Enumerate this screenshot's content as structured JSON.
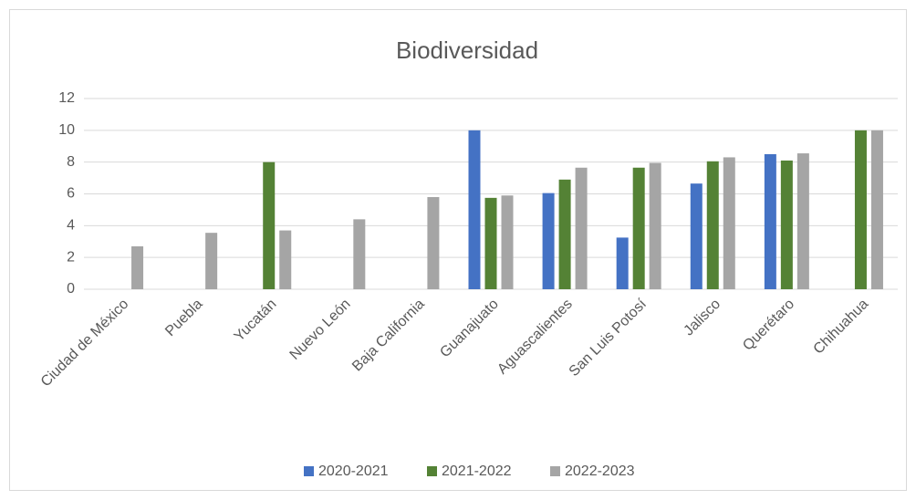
{
  "chart_data": {
    "type": "bar",
    "title": "Biodiversidad",
    "categories": [
      "Ciudad de México",
      "Puebla",
      "Yucatán",
      "Nuevo León",
      "Baja California",
      "Guanajuato",
      "Aguascalientes",
      "San Luis Potosí",
      "Jalisco",
      "Querétaro",
      "Chihuahua"
    ],
    "series": [
      {
        "name": "2020-2021",
        "color": "#4472c4",
        "values": [
          null,
          null,
          null,
          null,
          null,
          10,
          6.05,
          3.25,
          6.65,
          8.5,
          null
        ]
      },
      {
        "name": "2021-2022",
        "color": "#548235",
        "values": [
          null,
          null,
          8,
          null,
          null,
          5.75,
          6.9,
          7.65,
          8.05,
          8.1,
          10
        ]
      },
      {
        "name": "2022-2023",
        "color": "#a5a5a5",
        "values": [
          2.7,
          3.55,
          3.7,
          4.4,
          5.8,
          5.9,
          7.65,
          7.95,
          8.3,
          8.55,
          10
        ]
      }
    ],
    "ylim": [
      0,
      12
    ],
    "yticks": [
      0,
      2,
      4,
      6,
      8,
      10,
      12
    ],
    "grid": true,
    "legend": "bottom"
  }
}
